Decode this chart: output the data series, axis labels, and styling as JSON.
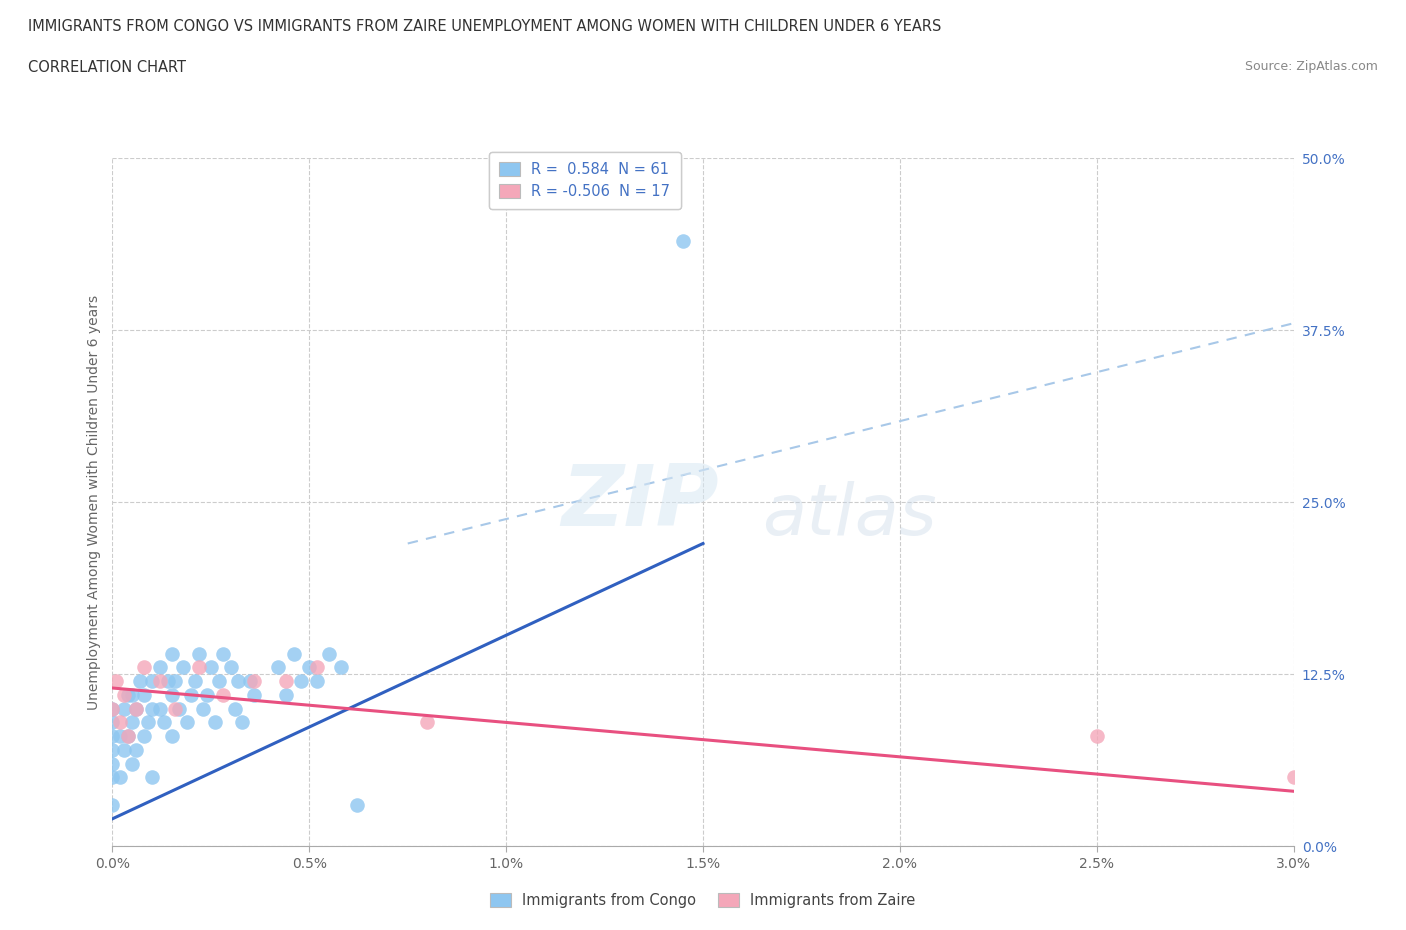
{
  "title_line1": "IMMIGRANTS FROM CONGO VS IMMIGRANTS FROM ZAIRE UNEMPLOYMENT AMONG WOMEN WITH CHILDREN UNDER 6 YEARS",
  "title_line2": "CORRELATION CHART",
  "source_text": "Source: ZipAtlas.com",
  "ylabel": "Unemployment Among Women with Children Under 6 years",
  "xticklabels": [
    "0.0%",
    "0.5%",
    "1.0%",
    "1.5%",
    "2.0%",
    "2.5%",
    "3.0%"
  ],
  "xtick_values": [
    0.0,
    0.5,
    1.0,
    1.5,
    2.0,
    2.5,
    3.0
  ],
  "yticklabels": [
    "0.0%",
    "12.5%",
    "25.0%",
    "37.5%",
    "50.0%"
  ],
  "ytick_values": [
    0.0,
    12.5,
    25.0,
    37.5,
    50.0
  ],
  "xlim": [
    0.0,
    3.0
  ],
  "ylim": [
    0.0,
    50.0
  ],
  "legend_r1": "R =  0.584  N = 61",
  "legend_r2": "R = -0.506  N = 17",
  "legend_label1": "Immigrants from Congo",
  "legend_label2": "Immigrants from Zaire",
  "color_congo": "#8EC6F0",
  "color_zaire": "#F4A7B9",
  "color_line_congo": "#3060C0",
  "color_line_zaire": "#E85080",
  "color_line_dashed": "#A8C8E8",
  "watermark_zip": "ZIP",
  "watermark_atlas": "atlas",
  "congo_x": [
    0.0,
    0.0,
    0.0,
    0.0,
    0.0,
    0.0,
    0.0,
    0.02,
    0.02,
    0.03,
    0.03,
    0.04,
    0.04,
    0.05,
    0.05,
    0.05,
    0.06,
    0.06,
    0.07,
    0.08,
    0.08,
    0.09,
    0.1,
    0.1,
    0.1,
    0.12,
    0.12,
    0.13,
    0.14,
    0.15,
    0.15,
    0.15,
    0.16,
    0.17,
    0.18,
    0.19,
    0.2,
    0.21,
    0.22,
    0.23,
    0.24,
    0.25,
    0.26,
    0.27,
    0.28,
    0.3,
    0.31,
    0.32,
    0.33,
    0.35,
    0.36,
    0.42,
    0.44,
    0.46,
    0.48,
    0.5,
    0.52,
    0.55,
    0.58,
    0.62,
    1.45
  ],
  "congo_y": [
    3.0,
    5.0,
    6.0,
    7.0,
    8.0,
    9.0,
    10.0,
    5.0,
    8.0,
    7.0,
    10.0,
    8.0,
    11.0,
    9.0,
    11.0,
    6.0,
    10.0,
    7.0,
    12.0,
    8.0,
    11.0,
    9.0,
    10.0,
    12.0,
    5.0,
    10.0,
    13.0,
    9.0,
    12.0,
    8.0,
    11.0,
    14.0,
    12.0,
    10.0,
    13.0,
    9.0,
    11.0,
    12.0,
    14.0,
    10.0,
    11.0,
    13.0,
    9.0,
    12.0,
    14.0,
    13.0,
    10.0,
    12.0,
    9.0,
    12.0,
    11.0,
    13.0,
    11.0,
    14.0,
    12.0,
    13.0,
    12.0,
    14.0,
    13.0,
    3.0,
    44.0
  ],
  "zaire_x": [
    0.0,
    0.01,
    0.02,
    0.03,
    0.04,
    0.06,
    0.08,
    0.12,
    0.16,
    0.22,
    0.28,
    0.36,
    0.44,
    0.52,
    0.8,
    2.5,
    3.0
  ],
  "zaire_y": [
    10.0,
    12.0,
    9.0,
    11.0,
    8.0,
    10.0,
    13.0,
    12.0,
    10.0,
    13.0,
    11.0,
    12.0,
    12.0,
    13.0,
    9.0,
    8.0,
    5.0
  ],
  "line_congo_x0": 0.0,
  "line_congo_y0": 2.0,
  "line_congo_x1": 1.5,
  "line_congo_y1": 22.0,
  "line_zaire_x0": 0.0,
  "line_zaire_y0": 11.5,
  "line_zaire_x1": 3.0,
  "line_zaire_y1": 4.0,
  "line_dash_x0": 0.75,
  "line_dash_y0": 22.0,
  "line_dash_x1": 3.0,
  "line_dash_y1": 38.0
}
